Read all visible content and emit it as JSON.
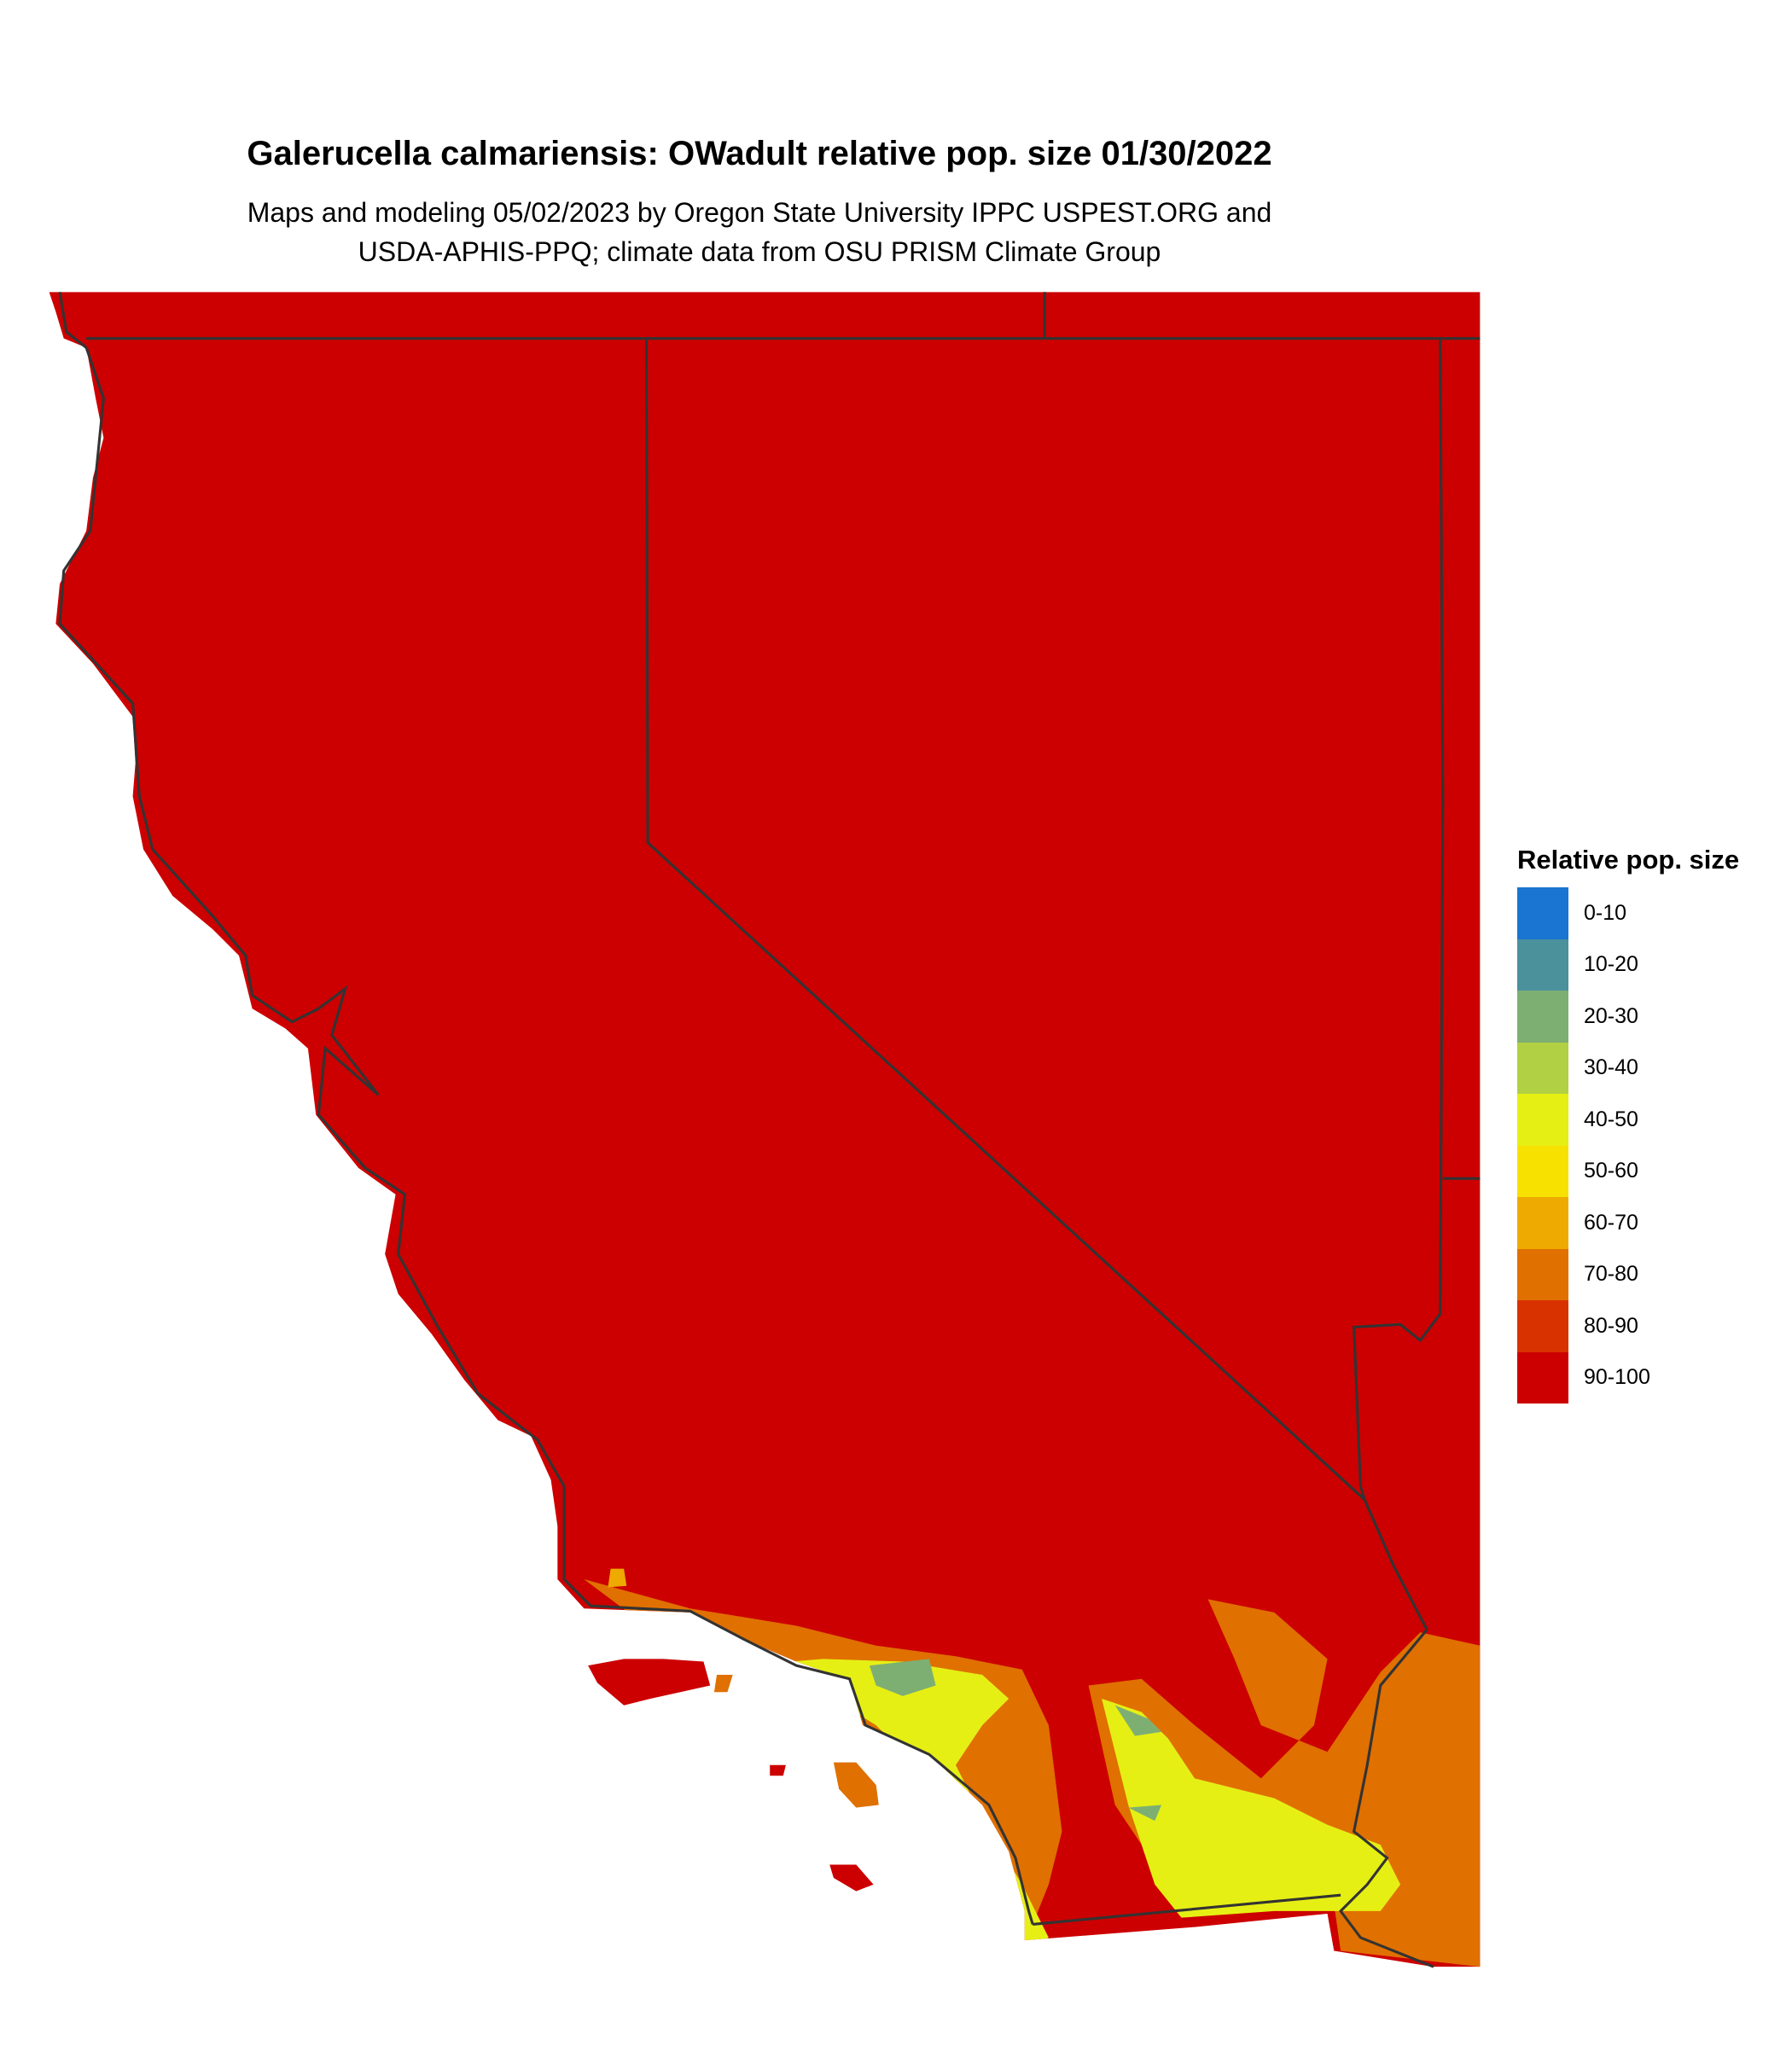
{
  "title": "Galerucella calmariensis: OWadult relative pop. size 01/30/2022",
  "subtitle_line1": "Maps and modeling 05/02/2023 by Oregon State University IPPC USPEST.ORG and",
  "subtitle_line2": "USDA-APHIS-PPQ; climate data from OSU PRISM Climate Group",
  "legend": {
    "title": "Relative pop. size",
    "items": [
      {
        "label": "0-10",
        "color": "#1a74d1"
      },
      {
        "label": "10-20",
        "color": "#4a919c"
      },
      {
        "label": "20-30",
        "color": "#7daf73"
      },
      {
        "label": "30-40",
        "color": "#b1d044"
      },
      {
        "label": "40-50",
        "color": "#e6ef14"
      },
      {
        "label": "50-60",
        "color": "#f7e100"
      },
      {
        "label": "60-70",
        "color": "#eeaa00"
      },
      {
        "label": "70-80",
        "color": "#e07000"
      },
      {
        "label": "80-90",
        "color": "#d83200"
      },
      {
        "label": "90-100",
        "color": "#cc0000"
      }
    ]
  },
  "map": {
    "dominant_class": "90-100",
    "border_color": "#333333"
  }
}
